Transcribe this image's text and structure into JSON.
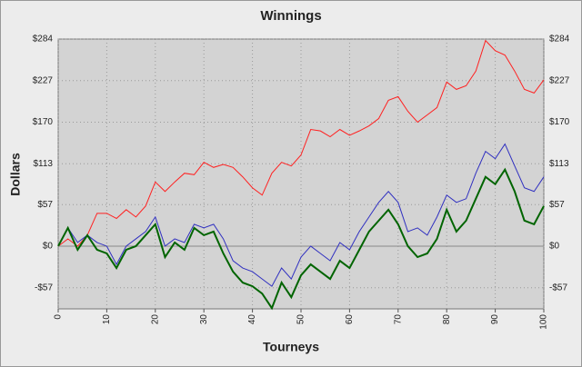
{
  "chart_data": {
    "type": "line",
    "title": "Winnings",
    "x_label": "Tourneys",
    "y_label": "Dollars",
    "x": [
      0,
      2,
      4,
      6,
      8,
      10,
      12,
      14,
      16,
      18,
      20,
      22,
      24,
      26,
      28,
      30,
      32,
      34,
      36,
      38,
      40,
      42,
      44,
      46,
      48,
      50,
      52,
      54,
      56,
      58,
      60,
      62,
      64,
      66,
      68,
      70,
      72,
      74,
      76,
      78,
      80,
      82,
      84,
      86,
      88,
      90,
      92,
      94,
      96,
      98,
      100
    ],
    "series": [
      {
        "color": "#ff2020",
        "values": [
          0,
          10,
          0,
          15,
          45,
          45,
          38,
          50,
          40,
          55,
          88,
          75,
          88,
          100,
          98,
          115,
          108,
          112,
          108,
          95,
          80,
          70,
          100,
          115,
          110,
          125,
          160,
          158,
          150,
          160,
          152,
          158,
          165,
          175,
          200,
          205,
          185,
          170,
          180,
          190,
          225,
          215,
          220,
          240,
          282,
          268,
          262,
          240,
          215,
          210,
          228
        ]
      },
      {
        "color": "#3030c0",
        "values": [
          0,
          25,
          5,
          15,
          5,
          0,
          -25,
          0,
          10,
          20,
          40,
          0,
          10,
          5,
          30,
          25,
          30,
          10,
          -20,
          -30,
          -35,
          -45,
          -55,
          -30,
          -45,
          -15,
          0,
          -10,
          -20,
          5,
          -5,
          20,
          40,
          60,
          75,
          60,
          20,
          25,
          15,
          40,
          70,
          60,
          65,
          100,
          130,
          120,
          140,
          110,
          80,
          75,
          95
        ]
      },
      {
        "color": "#006400",
        "values": [
          0,
          25,
          -5,
          15,
          -5,
          -10,
          -30,
          -5,
          0,
          15,
          30,
          -15,
          5,
          -5,
          25,
          15,
          20,
          -10,
          -35,
          -50,
          -55,
          -65,
          -85,
          -50,
          -70,
          -40,
          -25,
          -35,
          -45,
          -20,
          -30,
          -5,
          20,
          35,
          50,
          30,
          0,
          -15,
          -10,
          10,
          50,
          20,
          35,
          65,
          95,
          85,
          105,
          75,
          35,
          30,
          55
        ]
      }
    ],
    "xlim": [
      0,
      100
    ],
    "xticks": [
      0,
      10,
      20,
      30,
      40,
      50,
      60,
      70,
      80,
      90,
      100
    ],
    "ylim": [
      -86,
      284
    ],
    "yticks": [
      {
        "value": 284,
        "label": "$284"
      },
      {
        "value": 227,
        "label": "$227"
      },
      {
        "value": 170,
        "label": "$170"
      },
      {
        "value": 113,
        "label": "$113"
      },
      {
        "value": 57,
        "label": "$57"
      },
      {
        "value": 0,
        "label": "$0"
      },
      {
        "value": -57,
        "label": "-$57"
      }
    ],
    "grid": true
  }
}
